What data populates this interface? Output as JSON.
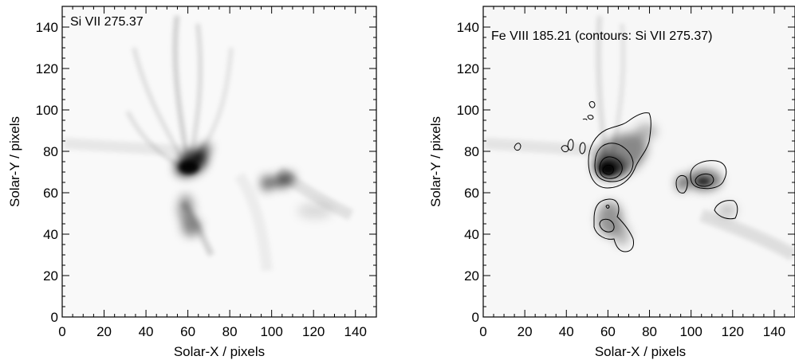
{
  "figure": {
    "panels": [
      {
        "id": "left",
        "title": "Si VII 275.37",
        "xlabel": "Solar-X / pixels",
        "ylabel": "Solar-Y / pixels",
        "xlim": [
          0,
          150
        ],
        "ylim": [
          0,
          150
        ],
        "xticks": [
          "0",
          "20",
          "40",
          "60",
          "80",
          "100",
          "120",
          "140"
        ],
        "yticks": [
          "0",
          "20",
          "40",
          "60",
          "80",
          "100",
          "120",
          "140"
        ]
      },
      {
        "id": "right",
        "title": "Fe VIII 185.21 (contours: Si VII 275.37)",
        "xlabel": "Solar-X / pixels",
        "ylabel": "Solar-Y / pixels",
        "xlim": [
          0,
          150
        ],
        "ylim": [
          0,
          150
        ],
        "xticks": [
          "0",
          "20",
          "40",
          "60",
          "80",
          "100",
          "120",
          "140"
        ],
        "yticks": [
          "0",
          "20",
          "40",
          "60",
          "80",
          "100",
          "120",
          "140"
        ]
      }
    ]
  }
}
